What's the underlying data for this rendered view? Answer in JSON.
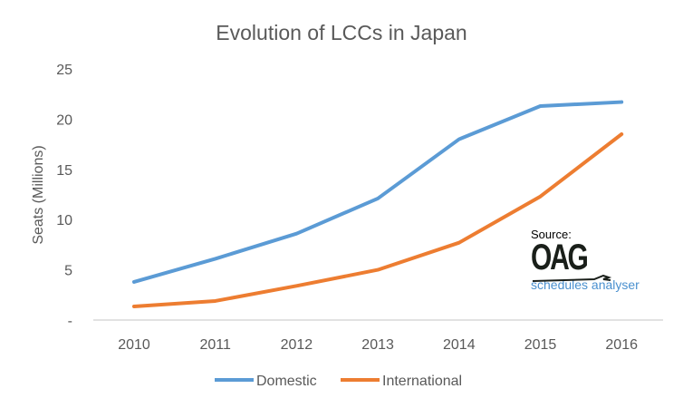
{
  "chart_data": {
    "type": "line",
    "title": "Evolution of LCCs in Japan",
    "xlabel": "",
    "ylabel": "Seats (Millions)",
    "categories": [
      "2010",
      "2011",
      "2012",
      "2013",
      "2014",
      "2015",
      "2016"
    ],
    "ylim": [
      0,
      25
    ],
    "yticks": [
      "-",
      "5",
      "10",
      "15",
      "20",
      "25"
    ],
    "grid": false,
    "legend": "bottom",
    "series": [
      {
        "name": "Domestic",
        "color": "#5b9bd5",
        "values": [
          3.8,
          6.1,
          8.6,
          12.1,
          18.0,
          21.3,
          21.7
        ]
      },
      {
        "name": "International",
        "color": "#ed7d31",
        "values": [
          1.35,
          1.9,
          3.4,
          5.0,
          7.7,
          12.3,
          18.5
        ]
      }
    ]
  },
  "source": {
    "label": "Source:",
    "logo": "OAG",
    "tagline": "schedules analyser"
  }
}
